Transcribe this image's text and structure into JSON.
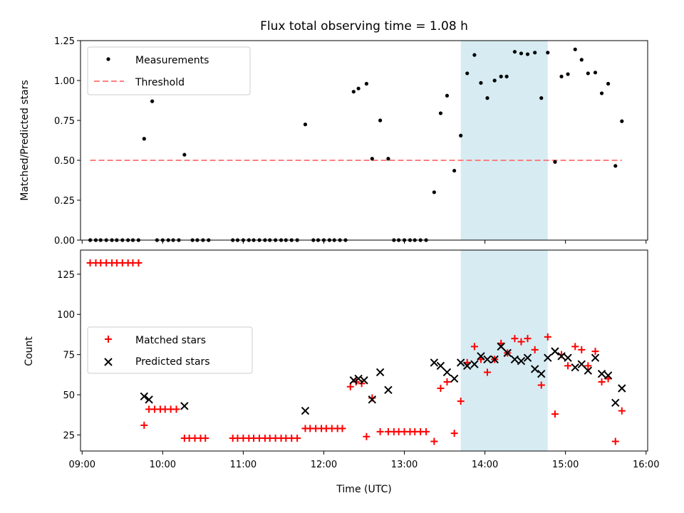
{
  "title": "Flux total observing time = 1.08 h",
  "x_axis": {
    "label": "Time (UTC)",
    "ticks": [
      "09:00",
      "10:00",
      "11:00",
      "12:00",
      "13:00",
      "14:00",
      "15:00",
      "16:00"
    ],
    "tick_values": [
      9,
      10,
      11,
      12,
      13,
      14,
      15,
      16
    ],
    "range": [
      8.98,
      16.02
    ]
  },
  "highlight_span": {
    "start": 13.7,
    "end": 14.78,
    "color": "#add8e6"
  },
  "colors": {
    "measurement": "#000000",
    "threshold": "#ff7f7f",
    "matched": "#ff0000",
    "predicted": "#000000",
    "span": "#add8e6"
  },
  "chart_data": [
    {
      "type": "scatter",
      "ylabel": "Matched/Predicted stars",
      "ylim": [
        0,
        1.25
      ],
      "yticks": [
        "0.00",
        "0.25",
        "0.50",
        "0.75",
        "1.00",
        "1.25"
      ],
      "ytick_values": [
        0,
        0.25,
        0.5,
        0.75,
        1.0,
        1.25
      ],
      "legend_placement": "upper-left",
      "legend": {
        "measurements": "Measurements",
        "threshold": "Threshold"
      },
      "threshold": {
        "value": 0.5,
        "x_start": 9.1,
        "x_end": 15.7
      },
      "series": [
        {
          "name": "Measurements",
          "x": [
            9.1,
            9.17,
            9.23,
            9.3,
            9.37,
            9.43,
            9.5,
            9.57,
            9.63,
            9.7,
            9.77,
            9.87,
            9.93,
            10.0,
            10.07,
            10.13,
            10.2,
            10.27,
            10.37,
            10.43,
            10.5,
            10.57,
            10.87,
            10.93,
            11.0,
            11.07,
            11.13,
            11.2,
            11.27,
            11.33,
            11.4,
            11.47,
            11.53,
            11.6,
            11.67,
            11.77,
            11.87,
            11.93,
            12.0,
            12.07,
            12.13,
            12.2,
            12.27,
            12.37,
            12.43,
            12.53,
            12.6,
            12.7,
            12.8,
            12.87,
            12.93,
            13.0,
            13.07,
            13.13,
            13.2,
            13.27,
            13.37,
            13.45,
            13.53,
            13.62,
            13.7,
            13.78,
            13.87,
            13.95,
            14.03,
            14.12,
            14.2,
            14.27,
            14.37,
            14.45,
            14.53,
            14.62,
            14.7,
            14.78,
            14.87,
            14.95,
            15.03,
            15.12,
            15.2,
            15.28,
            15.37,
            15.45,
            15.53,
            15.62,
            15.7
          ],
          "y": [
            0,
            0,
            0,
            0,
            0,
            0,
            0,
            0,
            0,
            0,
            0.635,
            0.87,
            0,
            0,
            0,
            0,
            0,
            0.535,
            0,
            0,
            0,
            0,
            0,
            0,
            0,
            0,
            0,
            0,
            0,
            0,
            0,
            0,
            0,
            0,
            0,
            0.725,
            0,
            0,
            0,
            0,
            0,
            0,
            0,
            0.93,
            0.95,
            0.98,
            0.51,
            0.75,
            0.51,
            0,
            0,
            0,
            0,
            0,
            0,
            0,
            0.3,
            0.795,
            0.905,
            0.435,
            0.655,
            1.045,
            1.16,
            0.985,
            0.89,
            1.0,
            1.025,
            1.025,
            1.18,
            1.17,
            1.165,
            1.175,
            0.89,
            1.175,
            0.49,
            1.025,
            1.04,
            1.195,
            1.13,
            1.045,
            1.05,
            0.92,
            0.98,
            0.465,
            0.745
          ]
        }
      ]
    },
    {
      "type": "scatter",
      "ylabel": "Count",
      "ylim": [
        15,
        140
      ],
      "yticks": [
        "25",
        "50",
        "75",
        "100",
        "125"
      ],
      "ytick_values": [
        25,
        50,
        75,
        100,
        125
      ],
      "legend_placement": "center-left",
      "legend": {
        "matched": "Matched stars",
        "predicted": "Predicted stars"
      },
      "series": [
        {
          "name": "Matched stars",
          "x": [
            9.1,
            9.17,
            9.23,
            9.3,
            9.37,
            9.43,
            9.5,
            9.57,
            9.63,
            9.7,
            9.77,
            9.83,
            9.9,
            9.97,
            10.03,
            10.1,
            10.17,
            10.27,
            10.33,
            10.4,
            10.47,
            10.53,
            10.87,
            10.93,
            11.0,
            11.07,
            11.13,
            11.2,
            11.27,
            11.33,
            11.4,
            11.47,
            11.53,
            11.6,
            11.67,
            11.77,
            11.83,
            11.9,
            11.97,
            12.03,
            12.1,
            12.17,
            12.23,
            12.33,
            12.4,
            12.47,
            12.53,
            12.6,
            12.7,
            12.8,
            12.87,
            12.93,
            13.0,
            13.07,
            13.13,
            13.2,
            13.27,
            13.37,
            13.45,
            13.53,
            13.62,
            13.7,
            13.78,
            13.87,
            13.95,
            14.03,
            14.12,
            14.2,
            14.28,
            14.37,
            14.45,
            14.53,
            14.62,
            14.7,
            14.78,
            14.87,
            14.95,
            15.03,
            15.12,
            15.2,
            15.28,
            15.37,
            15.45,
            15.53,
            15.62,
            15.7
          ],
          "y": [
            132,
            132,
            132,
            132,
            132,
            132,
            132,
            132,
            132,
            132,
            31,
            41,
            41,
            41,
            41,
            41,
            41,
            23,
            23,
            23,
            23,
            23,
            23,
            23,
            23,
            23,
            23,
            23,
            23,
            23,
            23,
            23,
            23,
            23,
            23,
            29,
            29,
            29,
            29,
            29,
            29,
            29,
            29,
            55,
            58,
            57,
            24,
            48,
            27,
            27,
            27,
            27,
            27,
            27,
            27,
            27,
            27,
            21,
            54,
            58,
            26,
            46,
            70,
            80,
            72,
            64,
            72,
            82,
            76,
            85,
            83,
            85,
            78,
            56,
            86,
            38,
            75,
            68,
            80,
            78,
            68,
            77,
            58,
            60,
            21,
            40
          ]
        },
        {
          "name": "Predicted stars",
          "x": [
            9.77,
            9.83,
            10.27,
            11.77,
            12.37,
            12.43,
            12.5,
            12.6,
            12.7,
            12.8,
            13.37,
            13.45,
            13.53,
            13.62,
            13.7,
            13.78,
            13.87,
            13.95,
            14.03,
            14.12,
            14.2,
            14.28,
            14.37,
            14.45,
            14.53,
            14.62,
            14.7,
            14.78,
            14.87,
            14.95,
            15.03,
            15.12,
            15.2,
            15.28,
            15.37,
            15.45,
            15.53,
            15.62,
            15.7
          ],
          "y": [
            49,
            47,
            43,
            40,
            59,
            60,
            59,
            47,
            64,
            53,
            70,
            68,
            64,
            60,
            70,
            68,
            69,
            74,
            72,
            72,
            80,
            76,
            72,
            71,
            73,
            66,
            63,
            73,
            77,
            74,
            73,
            67,
            69,
            65,
            73,
            63,
            62,
            45,
            54
          ]
        }
      ]
    }
  ]
}
